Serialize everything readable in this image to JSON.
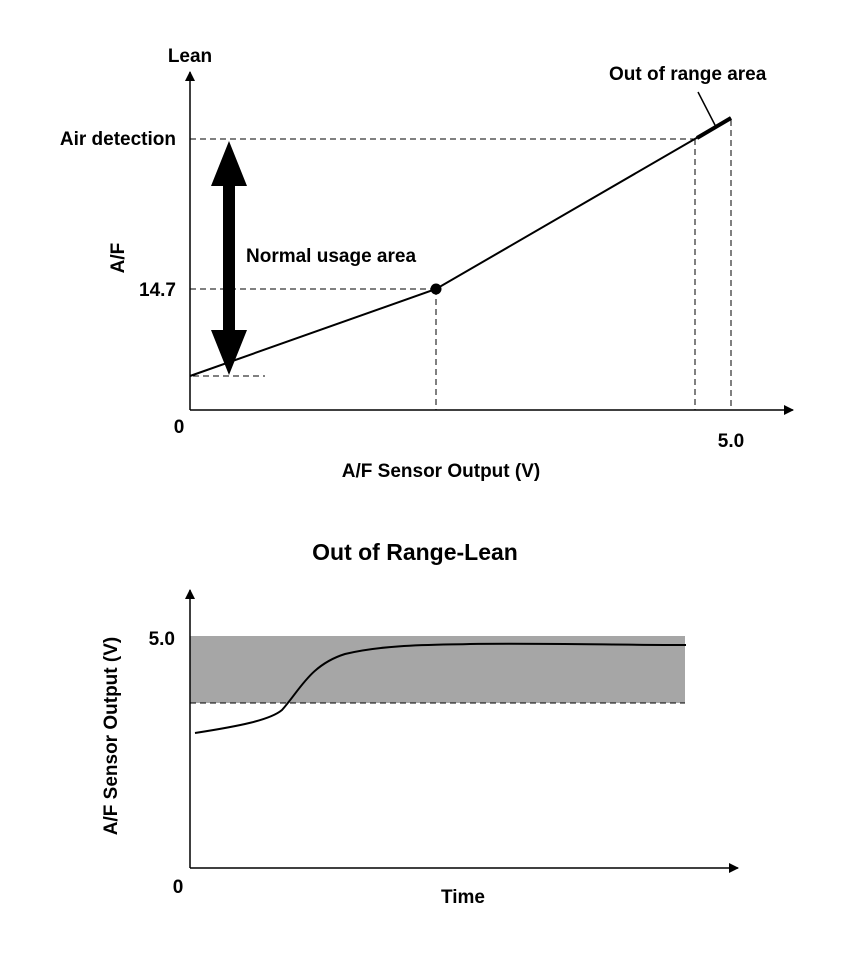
{
  "top_chart": {
    "y_axis_top_label": "Lean",
    "y_axis_label": "A/F",
    "x_axis_label": "A/F Sensor Output (V)",
    "origin_label": "0",
    "x_tick_label": "5.0",
    "y_tick_labels": [
      "Air detection",
      "14.7"
    ],
    "annotations": {
      "normal": "Normal usage area",
      "out_of_range": "Out of range area"
    }
  },
  "bottom_chart": {
    "title": "Out of Range-Lean",
    "y_axis_label": "A/F Sensor Output (V)",
    "x_axis_label": "Time",
    "origin_label": "0",
    "y_tick_label": "5.0",
    "colors": {
      "shaded_band": "#a6a6a6"
    }
  }
}
